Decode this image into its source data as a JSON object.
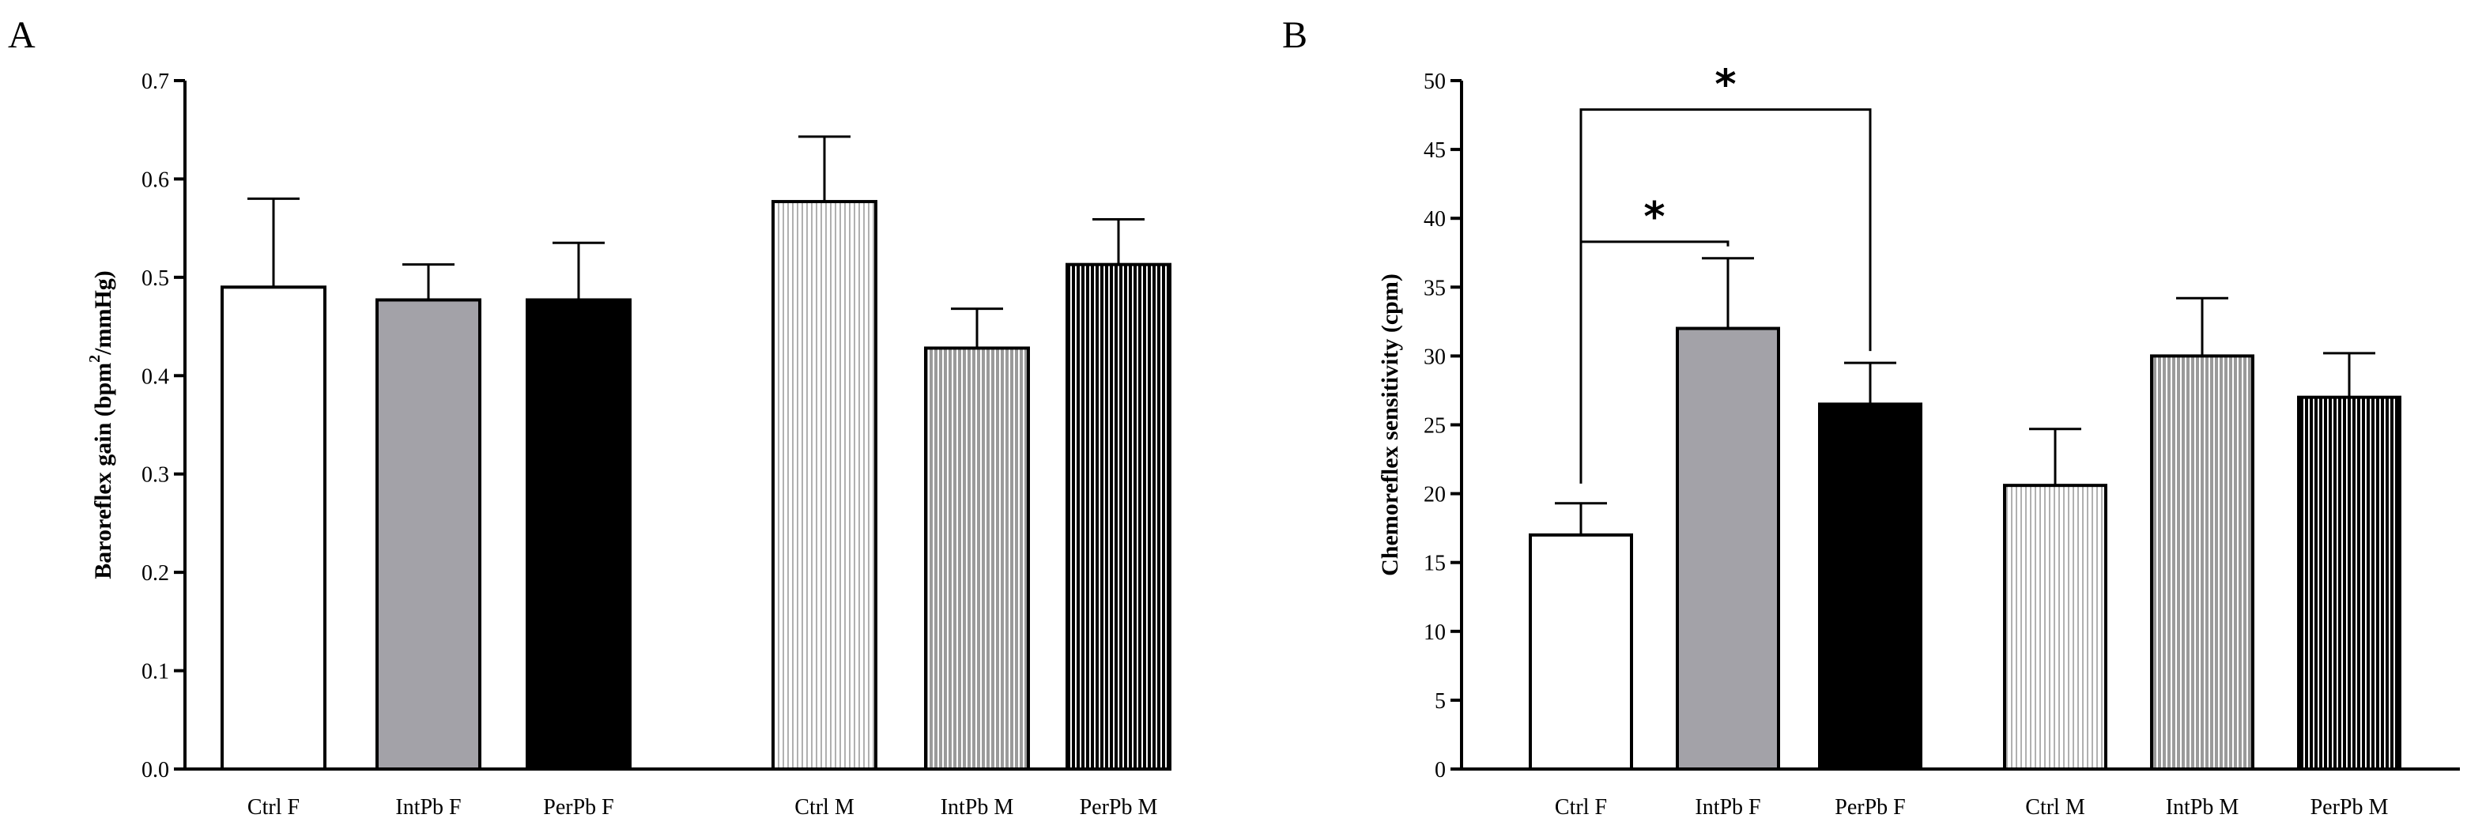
{
  "chart_data": [
    {
      "type": "bar",
      "panel_label": "A",
      "title": "",
      "xlabel": "",
      "ylabel": "Baroreflex gain (bpm",
      "ylabel_sup": "2",
      "ylabel_tail": "/mmHg)",
      "ylim": [
        0,
        0.7
      ],
      "yticks": [
        0.0,
        0.1,
        0.2,
        0.3,
        0.4,
        0.5,
        0.6,
        0.7
      ],
      "ytick_labels": [
        "0.0",
        "0.1",
        "0.2",
        "0.3",
        "0.4",
        "0.5",
        "0.6",
        "0.7"
      ],
      "categories": [
        "Ctrl F",
        "IntPb F",
        "PerPb F",
        "Ctrl M",
        "IntPb M",
        "PerPb M"
      ],
      "values": [
        0.49,
        0.477,
        0.477,
        0.577,
        0.428,
        0.513
      ],
      "errors": [
        0.09,
        0.036,
        0.058,
        0.066,
        0.04,
        0.046
      ],
      "fills": [
        "white",
        "gray",
        "black",
        "white-stripes",
        "gray-stripes",
        "black-stripes"
      ],
      "significance": []
    },
    {
      "type": "bar",
      "panel_label": "B",
      "title": "",
      "xlabel": "",
      "ylabel": "Chemoreflex sensitivity (cpm)",
      "ylabel_sup": "",
      "ylabel_tail": "",
      "ylim": [
        0,
        50
      ],
      "yticks": [
        0,
        5,
        10,
        15,
        20,
        25,
        30,
        35,
        40,
        45,
        50
      ],
      "ytick_labels": [
        "0",
        "5",
        "10",
        "15",
        "20",
        "25",
        "30",
        "35",
        "40",
        "45",
        "50"
      ],
      "categories": [
        "Ctrl F",
        "IntPb F",
        "PerPb F",
        "Ctrl M",
        "IntPb M",
        "PerPb M"
      ],
      "values": [
        17.0,
        32.0,
        26.5,
        20.6,
        30.0,
        27.0
      ],
      "errors": [
        2.3,
        5.1,
        3.0,
        4.1,
        4.2,
        3.2
      ],
      "fills": [
        "white",
        "gray",
        "black",
        "white-stripes",
        "gray-stripes",
        "black-stripes"
      ],
      "significance": [
        {
          "from": 0,
          "to": 1,
          "label": "*",
          "level": 38.3
        },
        {
          "from": 0,
          "to": 2,
          "label": "*",
          "level": 47.9
        }
      ]
    }
  ],
  "colors": {
    "gray": "#a3a2a8",
    "black": "#000000",
    "white": "#ffffff",
    "stripe_light": "#b0b0b0",
    "stripe_gray": "#9a9a9a"
  }
}
